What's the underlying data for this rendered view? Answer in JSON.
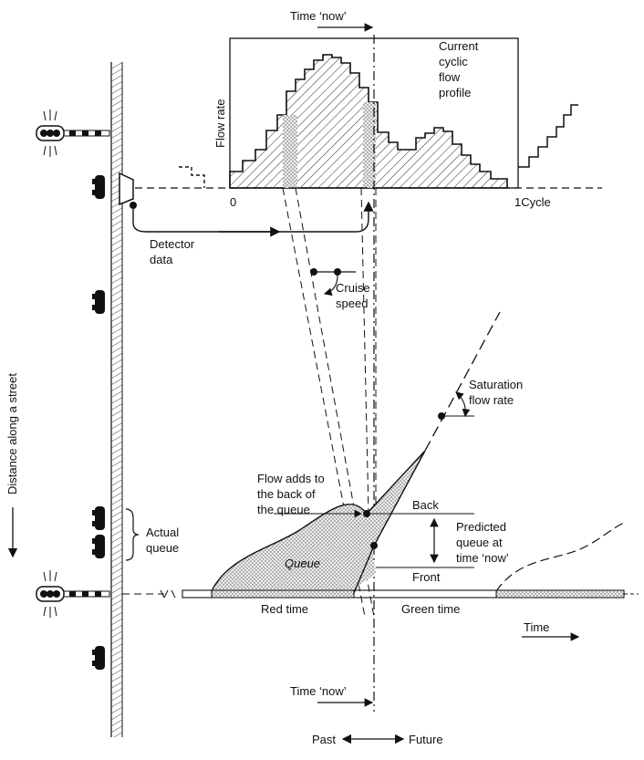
{
  "labels": {
    "time_now_top": "Time ‘now’",
    "current_profile": [
      "Current",
      "cyclic",
      "flow",
      "profile"
    ],
    "flow_rate": "Flow rate",
    "axis_zero": "0",
    "axis_cycle": "1Cycle",
    "detector_data": [
      "Detector",
      "data"
    ],
    "cruise_speed": [
      "Cruise",
      "speed"
    ],
    "distance_axis": "Distance along a street",
    "saturation": [
      "Saturation",
      "flow rate"
    ],
    "flow_adds": [
      "Flow adds to",
      "the back of",
      "the queue"
    ],
    "back": "Back",
    "front": "Front",
    "predicted_queue": [
      "Predicted",
      "queue at",
      "time ‘now’"
    ],
    "actual_queue": [
      "Actual",
      "queue"
    ],
    "queue": "Queue",
    "red_time": "Red time",
    "green_time": "Green time",
    "time_axis": "Time",
    "time_now_bottom": "Time ‘now’",
    "past": "Past",
    "future": "Future"
  },
  "colors": {
    "ink": "#111111",
    "stipple": "#e3e3e3",
    "background": "#ffffff"
  }
}
